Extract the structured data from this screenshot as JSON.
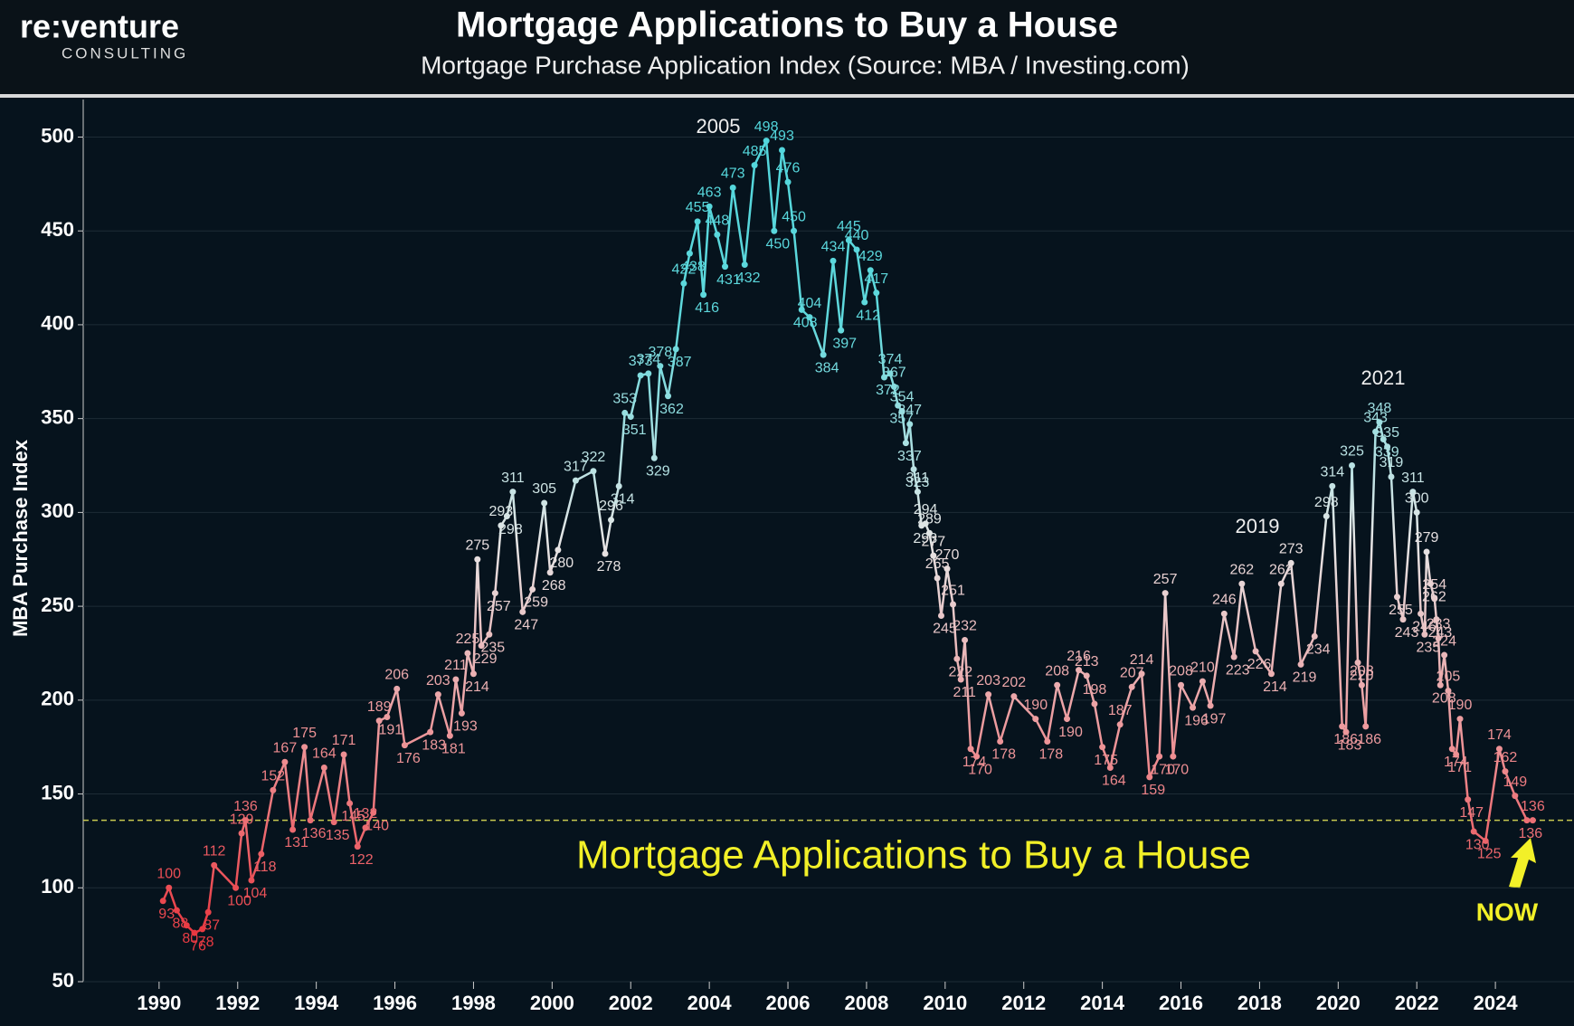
{
  "logo": {
    "name": "re:venture",
    "tagline": "CONSULTING"
  },
  "chart_data": {
    "type": "line",
    "title": "Mortgage Applications to Buy a House",
    "subtitle": "Mortgage Purchase Application Index (Source: MBA / Investing.com)",
    "y_label": "MBA Purchase Index",
    "annotations": [
      "2005",
      "2019",
      "2021",
      "Mortgage Applications to Buy a House",
      "NOW"
    ],
    "reference_line": 136,
    "reference_color": "#c8c850",
    "xlim": [
      1988.3,
      2026
    ],
    "xticks": [
      1990,
      1992,
      1994,
      1996,
      1998,
      2000,
      2002,
      2004,
      2006,
      2008,
      2010,
      2012,
      2014,
      2016,
      2018,
      2020,
      2022,
      2024
    ],
    "ylim": [
      50,
      520
    ],
    "yticks": [
      50,
      100,
      150,
      200,
      250,
      300,
      350,
      400,
      450,
      500
    ],
    "grid": true,
    "colors": [
      "#e8202a",
      "#ee8c90",
      "#e6e6e6",
      "#5fd8dc",
      "#4fd6dc"
    ],
    "series": [
      {
        "name": "MBA Purchase Index",
        "x": [
          1990.1,
          1990.25,
          1990.45,
          1990.7,
          1990.9,
          1991.1,
          1991.25,
          1991.4,
          1991.95,
          1992.1,
          1992.2,
          1992.35,
          1992.6,
          1992.9,
          1993.2,
          1993.4,
          1993.7,
          1993.85,
          1994.2,
          1994.45,
          1994.7,
          1994.85,
          1995.05,
          1995.25,
          1995.45,
          1995.6,
          1995.8,
          1996.05,
          1996.25,
          1996.9,
          1997.1,
          1997.4,
          1997.55,
          1997.7,
          1997.85,
          1998.0,
          1998.1,
          1998.2,
          1998.4,
          1998.55,
          1998.7,
          1998.85,
          1999.0,
          1999.25,
          1999.5,
          1999.8,
          1999.95,
          2000.15,
          2000.6,
          2001.05,
          2001.35,
          2001.5,
          2001.7,
          2001.85,
          2002.0,
          2002.25,
          2002.45,
          2002.6,
          2002.75,
          2002.95,
          2003.15,
          2003.35,
          2003.5,
          2003.7,
          2003.85,
          2004.0,
          2004.2,
          2004.4,
          2004.6,
          2004.9,
          2005.15,
          2005.45,
          2005.65,
          2005.85,
          2006.0,
          2006.15,
          2006.35,
          2006.55,
          2006.9,
          2007.15,
          2007.35,
          2007.55,
          2007.75,
          2007.95,
          2008.1,
          2008.25,
          2008.45,
          2008.6,
          2008.7,
          2008.8,
          2008.9,
          2009.0,
          2009.1,
          2009.2,
          2009.3,
          2009.4,
          2009.5,
          2009.6,
          2009.7,
          2009.8,
          2009.9,
          2010.05,
          2010.2,
          2010.3,
          2010.4,
          2010.5,
          2010.65,
          2010.8,
          2011.1,
          2011.4,
          2011.75,
          2012.3,
          2012.6,
          2012.85,
          2013.1,
          2013.4,
          2013.6,
          2013.8,
          2014.0,
          2014.2,
          2014.45,
          2014.75,
          2015.0,
          2015.2,
          2015.45,
          2015.6,
          2015.8,
          2016.0,
          2016.3,
          2016.55,
          2016.75,
          2017.1,
          2017.35,
          2017.55,
          2017.9,
          2018.3,
          2018.55,
          2018.8,
          2019.05,
          2019.4,
          2019.7,
          2019.85,
          2020.1,
          2020.2,
          2020.35,
          2020.5,
          2020.6,
          2020.7,
          2020.95,
          2021.05,
          2021.15,
          2021.25,
          2021.35,
          2021.5,
          2021.65,
          2021.9,
          2022.0,
          2022.1,
          2022.2,
          2022.25,
          2022.35,
          2022.45,
          2022.5,
          2022.55,
          2022.6,
          2022.7,
          2022.8,
          2022.9,
          2023.0,
          2023.1,
          2023.3,
          2023.45,
          2023.75,
          2024.1,
          2024.25,
          2024.5,
          2024.8,
          2024.95
        ],
        "values": [
          93,
          100,
          88,
          80,
          76,
          78,
          87,
          112,
          100,
          129,
          136,
          104,
          118,
          152,
          167,
          131,
          175,
          136,
          164,
          135,
          171,
          145,
          122,
          132,
          140,
          189,
          191,
          206,
          176,
          183,
          203,
          181,
          211,
          193,
          225,
          214,
          275,
          229,
          235,
          257,
          293,
          298,
          311,
          247,
          259,
          305,
          268,
          280,
          317,
          322,
          278,
          296,
          314,
          353,
          351,
          373,
          374,
          329,
          378,
          362,
          387,
          422,
          438,
          455,
          416,
          463,
          448,
          431,
          473,
          432,
          485,
          498,
          450,
          493,
          476,
          450,
          408,
          404,
          384,
          434,
          397,
          445,
          440,
          412,
          429,
          417,
          372,
          374,
          367,
          357,
          354,
          337,
          347,
          323,
          311,
          293,
          294,
          289,
          277,
          265,
          245,
          270,
          251,
          222,
          211,
          232,
          174,
          170,
          203,
          178,
          202,
          190,
          178,
          208,
          190,
          216,
          213,
          198,
          175,
          164,
          187,
          207,
          214,
          159,
          170,
          257,
          170,
          208,
          196,
          210,
          197,
          246,
          223,
          262,
          226,
          214,
          262,
          273,
          219,
          234,
          298,
          314,
          186,
          183,
          325,
          220,
          208,
          186,
          343,
          348,
          339,
          335,
          319,
          255,
          243,
          311,
          300,
          246,
          235,
          279,
          262,
          254,
          243,
          233,
          208,
          224,
          205,
          174,
          171,
          190,
          147,
          130,
          125,
          174,
          162,
          149,
          136,
          136
        ]
      }
    ]
  }
}
